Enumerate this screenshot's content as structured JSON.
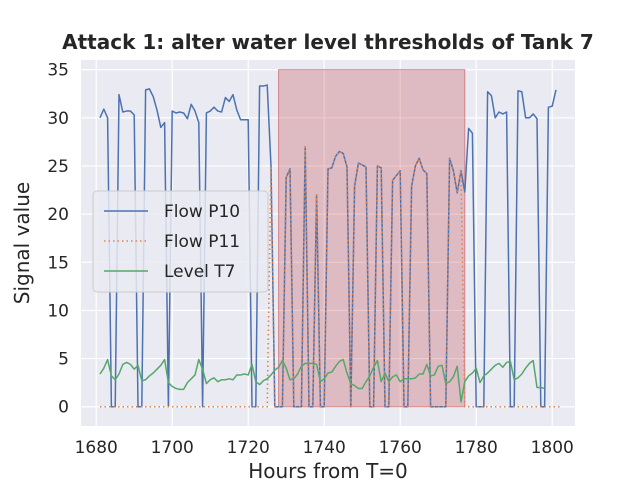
{
  "chart_data": {
    "type": "line",
    "title": "Attack 1: alter water level thresholds of Tank 7",
    "xlabel": "Hours from T=0",
    "ylabel": "Signal value",
    "xlim": [
      1676,
      1806
    ],
    "ylim": [
      -2,
      36
    ],
    "xticks": [
      1680,
      1700,
      1720,
      1740,
      1760,
      1780,
      1800
    ],
    "yticks": [
      0,
      5,
      10,
      15,
      20,
      25,
      30,
      35
    ],
    "grid": true,
    "legend_position": "center-left",
    "attack_region": {
      "x_start": 1728,
      "x_end": 1777,
      "y_start": 0,
      "y_end": 35,
      "color": "#c44e52"
    },
    "x_start": 1681,
    "series": [
      {
        "name": "Flow P10",
        "color": "#4c72b0",
        "style": "solid",
        "values": [
          30,
          30.9,
          30,
          0,
          0,
          32.4,
          30.6,
          30.7,
          30.7,
          30.3,
          0,
          0,
          32.9,
          33,
          32.2,
          30.8,
          29,
          29.5,
          0,
          30.7,
          30.5,
          30.6,
          30.5,
          29.9,
          31.4,
          30.7,
          29.5,
          0,
          30.5,
          30.7,
          31.1,
          30.7,
          30.6,
          32.1,
          31.7,
          32.4,
          30.8,
          29.8,
          29.8,
          29.8,
          0,
          0,
          33.3,
          33.3,
          33.4,
          25,
          0,
          0,
          0,
          23.8,
          24.7,
          0,
          0,
          0,
          27,
          0,
          0,
          22,
          0,
          0,
          24.7,
          24.8,
          26,
          26.5,
          26.3,
          24.9,
          0,
          22.9,
          25.3,
          25.1,
          24.9,
          0,
          0,
          25,
          24.8,
          0,
          0,
          23.5,
          24,
          24.5,
          0,
          0,
          22.9,
          25,
          25.8,
          24.6,
          24.2,
          0,
          0,
          0,
          0,
          0,
          25.8,
          24.5,
          22.2,
          24.5,
          22.3,
          28.9,
          28.4,
          0,
          0,
          0,
          32.7,
          32.3,
          30,
          30.6,
          30.4,
          30.6,
          0,
          0,
          32.8,
          32.7,
          30,
          30,
          30.4,
          29.9,
          0,
          0,
          31.1,
          31.2,
          32.9
        ]
      },
      {
        "name": "Flow P11",
        "color": "#dd8452",
        "style": "dotted",
        "values": [
          0,
          0,
          0,
          0,
          0,
          0,
          0,
          0,
          0,
          0,
          0,
          0,
          0,
          0,
          0,
          0,
          0,
          0,
          0,
          0,
          0,
          0,
          0,
          0,
          0,
          0,
          0,
          0,
          0,
          0,
          0,
          0,
          0,
          0,
          0,
          0,
          0,
          0,
          0,
          0,
          0,
          0,
          0,
          0,
          0,
          25,
          0,
          0,
          0,
          23.8,
          24.7,
          0,
          0,
          0,
          27,
          0,
          0,
          22,
          0,
          0,
          24.7,
          24.8,
          26,
          26.5,
          26.3,
          24.9,
          0,
          22.9,
          25.3,
          25.1,
          24.9,
          0,
          0,
          25,
          24.8,
          0,
          0,
          23.5,
          24,
          24.5,
          0,
          0,
          22.9,
          25,
          25.8,
          24.6,
          24.2,
          0,
          0,
          0,
          0,
          0,
          25.8,
          24.5,
          22.2,
          24.5,
          0,
          0,
          0,
          0,
          0,
          0,
          0,
          0,
          0,
          0,
          0,
          0,
          0,
          0,
          0,
          0,
          0,
          0,
          0,
          0,
          0,
          0,
          0,
          0,
          0,
          0
        ]
      },
      {
        "name": "Level T7",
        "color": "#55a868",
        "style": "solid",
        "values": [
          3.4,
          4,
          4.9,
          3.2,
          2.8,
          3.4,
          4.4,
          4.6,
          4.4,
          3.9,
          4.3,
          2.7,
          2.8,
          3.2,
          3.5,
          3.9,
          4.3,
          4.9,
          2.5,
          2.1,
          1.9,
          1.8,
          1.8,
          2.5,
          2.9,
          3.3,
          4.9,
          3.9,
          2.4,
          2.8,
          3,
          2.6,
          2.8,
          2.8,
          2.9,
          2.8,
          3.3,
          3.3,
          3.4,
          3.3,
          4.4,
          2.6,
          2.3,
          2.7,
          2.9,
          3.3,
          3.8,
          4.1,
          4.8,
          4,
          2.8,
          2.9,
          3.4,
          4.2,
          4.5,
          4.5,
          4.5,
          4.4,
          2.6,
          2.9,
          3.5,
          3.6,
          4.2,
          4.7,
          4.9,
          3.5,
          2.4,
          2.2,
          1.9,
          1.9,
          2.6,
          3.2,
          4.1,
          4.8,
          2.6,
          3.5,
          2.6,
          3.1,
          3.3,
          2.6,
          2.9,
          2.9,
          2.9,
          3,
          3.4,
          3.4,
          4.4,
          3.2,
          3.3,
          4.2,
          4.3,
          2.4,
          2.6,
          3.1,
          4.2,
          0.5,
          2.6,
          3.2,
          3.5,
          4,
          2.5,
          3.2,
          3.5,
          3.9,
          4.3,
          4.5,
          4.1,
          4.6,
          4.7,
          2.8,
          3,
          3.4,
          4,
          4.5,
          4.8,
          2,
          2,
          1.9
        ]
      }
    ]
  }
}
